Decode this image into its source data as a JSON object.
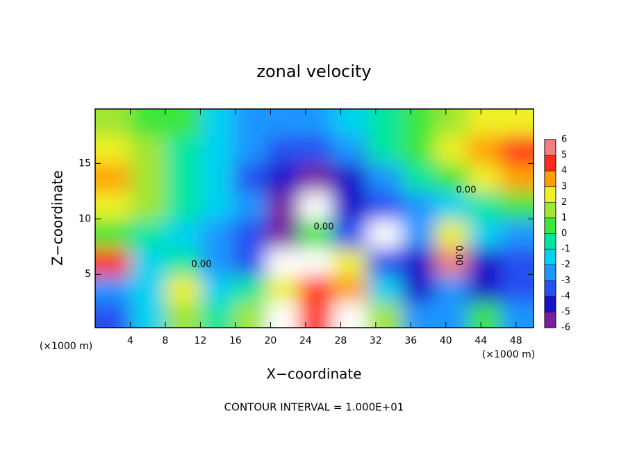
{
  "chart_data": {
    "type": "heatmap",
    "title": "zonal velocity",
    "xlabel": "X−coordinate",
    "ylabel": "Z−coordinate",
    "xunit": "(×1000 m)",
    "yunit": "(×1000 m)",
    "footer": "CONTOUR INTERVAL = 1.000E+01",
    "contour_labels": [
      "0.00",
      "0.00",
      "0.00",
      "0.00"
    ],
    "xlim": [
      0,
      50
    ],
    "ylim": [
      0.2,
      19.9
    ],
    "xticks": [
      4,
      8,
      12,
      16,
      20,
      24,
      28,
      32,
      36,
      40,
      44,
      48
    ],
    "yticks": [
      5,
      10,
      15
    ],
    "x": [
      2,
      6,
      10,
      14,
      17.5,
      21.5,
      25,
      29,
      33,
      37,
      40.5,
      44.5,
      48
    ],
    "y": [
      18.7,
      16.2,
      13.7,
      11.2,
      8.6,
      6.1,
      3.6,
      1.3
    ],
    "z": [
      [
        2,
        1,
        0.5,
        -1,
        -2,
        -2.5,
        -2,
        -1,
        0,
        1,
        2,
        3,
        3
      ],
      [
        3,
        1.5,
        0,
        -1.5,
        -2.5,
        -3.5,
        -3.5,
        -2,
        -0.5,
        1,
        2.5,
        4,
        4.5
      ],
      [
        4,
        2,
        0,
        -1.5,
        -3,
        -4.5,
        -5,
        -4,
        -2,
        -0.5,
        1,
        3,
        4
      ],
      [
        3,
        1.5,
        0,
        -1,
        -2.5,
        -5.5,
        -6.5,
        -4,
        -3,
        -2,
        -1,
        0,
        1
      ],
      [
        1,
        0,
        -1,
        -2,
        -3,
        -5,
        1,
        -3,
        -6.5,
        -2,
        3,
        -1,
        -2
      ],
      [
        5,
        -1,
        0,
        -2,
        -3,
        -7,
        7,
        3,
        -3,
        -4,
        6,
        -4,
        -3
      ],
      [
        -2,
        -1,
        3,
        -1,
        0,
        3,
        5,
        4,
        -1,
        -4,
        -2,
        -4,
        -3
      ],
      [
        -3,
        -1,
        2,
        0,
        2,
        7,
        5,
        7,
        2,
        -2,
        -2,
        1,
        -2
      ]
    ],
    "colorbar_ticks": [
      -6,
      -5,
      -4,
      -3,
      -2,
      -1,
      0,
      1,
      2,
      3,
      4,
      5,
      6
    ],
    "colorbar_colors": [
      "#7a1fa0",
      "#1a10c8",
      "#2850f0",
      "#1e96ff",
      "#00d2f0",
      "#00e6a0",
      "#3ce63c",
      "#a0e632",
      "#f0f028",
      "#ffa000",
      "#ff2a1e",
      "#f08080"
    ],
    "out_of_range_color": "#ffffff"
  }
}
